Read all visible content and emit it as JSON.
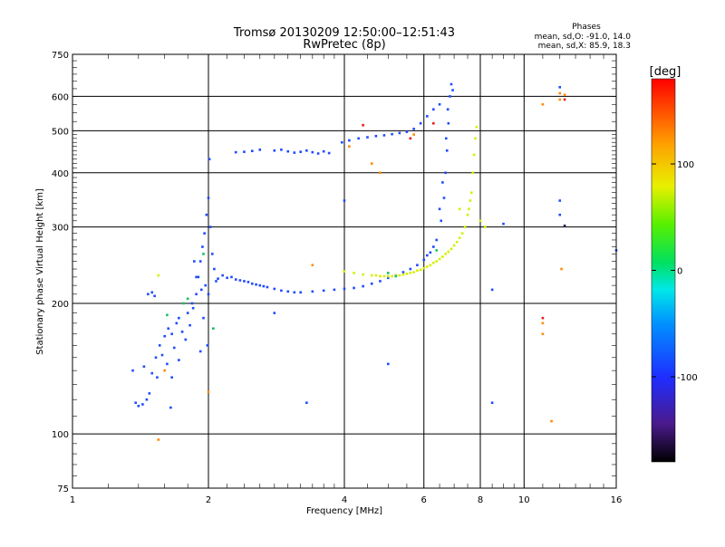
{
  "chart_data": {
    "type": "scatter",
    "title": "Tromsø 20130209 12:50:00–12:51:43",
    "subtitle": "RwPretec (8p)",
    "xlabel": "Frequency [MHz]",
    "ylabel": "Stationary phase Virtual Height [km]",
    "x_scale": "log",
    "y_scale": "log",
    "xlim": [
      1,
      16
    ],
    "ylim": [
      75,
      750
    ],
    "x_ticks": [
      1,
      2,
      4,
      6,
      8,
      10,
      16
    ],
    "y_ticks": [
      75,
      100,
      200,
      300,
      400,
      500,
      600,
      750
    ],
    "grid": true,
    "stats": {
      "heading": "Phases",
      "line_o": "mean, sd,O: -91.0, 14.0",
      "line_x": "mean, sd,X: 85.9, 18.3"
    },
    "colorbar": {
      "label": "[deg]",
      "range": [
        -180,
        180
      ],
      "ticks": [
        100,
        0,
        -100
      ],
      "colormap": "rainbow"
    },
    "series": [
      {
        "phase": -91,
        "color": "#1f4bff",
        "points": [
          [
            1.38,
            118
          ],
          [
            1.4,
            116
          ],
          [
            1.43,
            117
          ],
          [
            1.46,
            120
          ],
          [
            1.48,
            124
          ],
          [
            1.36,
            140
          ],
          [
            1.44,
            143
          ],
          [
            1.5,
            138
          ],
          [
            1.53,
            150
          ],
          [
            1.56,
            160
          ],
          [
            1.58,
            152
          ],
          [
            1.6,
            168
          ],
          [
            1.63,
            175
          ],
          [
            1.66,
            170
          ],
          [
            1.68,
            158
          ],
          [
            1.7,
            180
          ],
          [
            1.72,
            185
          ],
          [
            1.75,
            172
          ],
          [
            1.78,
            165
          ],
          [
            1.8,
            190
          ],
          [
            1.82,
            178
          ],
          [
            1.85,
            195
          ],
          [
            1.88,
            210
          ],
          [
            1.9,
            230
          ],
          [
            1.92,
            250
          ],
          [
            1.94,
            270
          ],
          [
            1.96,
            290
          ],
          [
            1.98,
            320
          ],
          [
            2.0,
            350
          ],
          [
            2.01,
            430
          ],
          [
            2.02,
            300
          ],
          [
            2.04,
            260
          ],
          [
            2.06,
            240
          ],
          [
            2.08,
            225
          ],
          [
            1.93,
            215
          ],
          [
            1.97,
            220
          ],
          [
            2.0,
            210
          ],
          [
            1.95,
            185
          ],
          [
            1.99,
            160
          ],
          [
            1.92,
            155
          ],
          [
            1.62,
            145
          ],
          [
            1.66,
            135
          ],
          [
            1.72,
            148
          ],
          [
            1.54,
            135
          ],
          [
            1.47,
            210
          ],
          [
            1.5,
            212
          ],
          [
            1.52,
            208
          ],
          [
            1.84,
            200
          ],
          [
            1.88,
            230
          ],
          [
            1.86,
            250
          ],
          [
            2.1,
            228
          ],
          [
            2.2,
            229
          ],
          [
            2.3,
            227
          ],
          [
            2.4,
            225
          ],
          [
            2.5,
            222
          ],
          [
            2.6,
            220
          ],
          [
            2.7,
            218
          ],
          [
            2.8,
            216
          ],
          [
            2.9,
            214
          ],
          [
            3.0,
            213
          ],
          [
            3.1,
            212
          ],
          [
            3.2,
            212
          ],
          [
            3.4,
            213
          ],
          [
            3.6,
            214
          ],
          [
            3.8,
            215
          ],
          [
            4.0,
            216
          ],
          [
            4.2,
            217
          ],
          [
            4.4,
            219
          ],
          [
            4.6,
            222
          ],
          [
            4.8,
            225
          ],
          [
            5.0,
            229
          ],
          [
            5.2,
            232
          ],
          [
            5.4,
            236
          ],
          [
            5.6,
            240
          ],
          [
            5.8,
            245
          ],
          [
            6.0,
            252
          ],
          [
            6.2,
            262
          ],
          [
            6.4,
            280
          ],
          [
            6.55,
            310
          ],
          [
            6.65,
            350
          ],
          [
            6.7,
            400
          ],
          [
            6.75,
            450
          ],
          [
            6.8,
            520
          ],
          [
            6.85,
            600
          ],
          [
            6.9,
            640
          ],
          [
            6.95,
            620
          ],
          [
            6.78,
            560
          ],
          [
            6.72,
            480
          ],
          [
            6.6,
            380
          ],
          [
            6.5,
            330
          ],
          [
            6.3,
            270
          ],
          [
            6.1,
            258
          ],
          [
            2.15,
            232
          ],
          [
            2.25,
            230
          ],
          [
            2.35,
            226
          ],
          [
            2.45,
            224
          ],
          [
            2.55,
            221
          ],
          [
            2.65,
            219
          ],
          [
            2.8,
            450
          ],
          [
            2.9,
            452
          ],
          [
            3.0,
            448
          ],
          [
            3.1,
            445
          ],
          [
            3.2,
            447
          ],
          [
            3.3,
            450
          ],
          [
            3.4,
            446
          ],
          [
            3.5,
            443
          ],
          [
            3.6,
            448
          ],
          [
            3.7,
            444
          ],
          [
            2.4,
            447
          ],
          [
            2.5,
            449
          ],
          [
            2.6,
            452
          ],
          [
            2.3,
            446
          ],
          [
            3.95,
            470
          ],
          [
            4.1,
            475
          ],
          [
            4.3,
            480
          ],
          [
            4.5,
            483
          ],
          [
            4.7,
            486
          ],
          [
            4.9,
            488
          ],
          [
            5.1,
            491
          ],
          [
            5.3,
            494
          ],
          [
            5.5,
            497
          ],
          [
            5.7,
            505
          ],
          [
            5.9,
            520
          ],
          [
            6.1,
            540
          ],
          [
            6.3,
            560
          ],
          [
            6.5,
            575
          ],
          [
            12.0,
            630
          ],
          [
            12.0,
            345
          ],
          [
            12.0,
            320
          ],
          [
            8.5,
            215
          ],
          [
            8.5,
            118
          ],
          [
            1.65,
            115
          ],
          [
            5.0,
            145
          ],
          [
            3.3,
            118
          ],
          [
            4.0,
            345
          ],
          [
            2.8,
            190
          ],
          [
            9.0,
            305
          ],
          [
            16.0,
            265
          ]
        ]
      },
      {
        "phase": 86,
        "color": "#d4f000",
        "points": [
          [
            4.0,
            237
          ],
          [
            4.2,
            235
          ],
          [
            4.4,
            233
          ],
          [
            4.6,
            232
          ],
          [
            4.8,
            231
          ],
          [
            5.0,
            231
          ],
          [
            5.2,
            232
          ],
          [
            5.4,
            233
          ],
          [
            5.6,
            235
          ],
          [
            5.8,
            238
          ],
          [
            6.0,
            241
          ],
          [
            6.2,
            245
          ],
          [
            6.4,
            250
          ],
          [
            6.6,
            256
          ],
          [
            6.8,
            263
          ],
          [
            7.0,
            272
          ],
          [
            7.2,
            283
          ],
          [
            7.4,
            300
          ],
          [
            7.55,
            330
          ],
          [
            7.65,
            360
          ],
          [
            7.7,
            400
          ],
          [
            7.75,
            440
          ],
          [
            7.8,
            480
          ],
          [
            7.85,
            510
          ],
          [
            7.6,
            345
          ],
          [
            7.5,
            320
          ],
          [
            7.3,
            290
          ],
          [
            7.1,
            277
          ],
          [
            6.9,
            267
          ],
          [
            6.7,
            260
          ],
          [
            6.5,
            253
          ],
          [
            6.3,
            248
          ],
          [
            6.1,
            243
          ],
          [
            5.9,
            239
          ],
          [
            5.7,
            236
          ],
          [
            5.5,
            234
          ],
          [
            5.3,
            232
          ],
          [
            5.1,
            231
          ],
          [
            4.9,
            231
          ],
          [
            4.7,
            232
          ],
          [
            1.55,
            232
          ],
          [
            8.0,
            310
          ],
          [
            8.2,
            300
          ],
          [
            7.2,
            330
          ]
        ]
      },
      {
        "phase": 15,
        "color": "#18c060",
        "points": [
          [
            1.76,
            200
          ],
          [
            1.8,
            205
          ],
          [
            1.62,
            188
          ],
          [
            5.2,
            231
          ],
          [
            5.0,
            235
          ],
          [
            6.4,
            265
          ],
          [
            1.95,
            260
          ],
          [
            2.05,
            175
          ]
        ]
      },
      {
        "phase": 120,
        "color": "#ff8a00",
        "points": [
          [
            1.55,
            97
          ],
          [
            4.6,
            420
          ],
          [
            4.8,
            400
          ],
          [
            5.7,
            490
          ],
          [
            11.0,
            575
          ],
          [
            11.0,
            180
          ],
          [
            11.0,
            170
          ],
          [
            12.0,
            590
          ],
          [
            12.0,
            610
          ],
          [
            12.3,
            605
          ],
          [
            12.1,
            240
          ],
          [
            11.5,
            107
          ],
          [
            3.4,
            245
          ],
          [
            4.1,
            460
          ],
          [
            1.6,
            140
          ],
          [
            2.0,
            125
          ]
        ]
      },
      {
        "phase": 150,
        "color": "#e81a1a",
        "points": [
          [
            4.4,
            515
          ],
          [
            5.6,
            480
          ],
          [
            6.3,
            520
          ],
          [
            11.0,
            185
          ],
          [
            12.3,
            590
          ]
        ]
      },
      {
        "phase": -170,
        "color": "#3a1a60",
        "points": [
          [
            12.3,
            302
          ]
        ]
      }
    ]
  }
}
